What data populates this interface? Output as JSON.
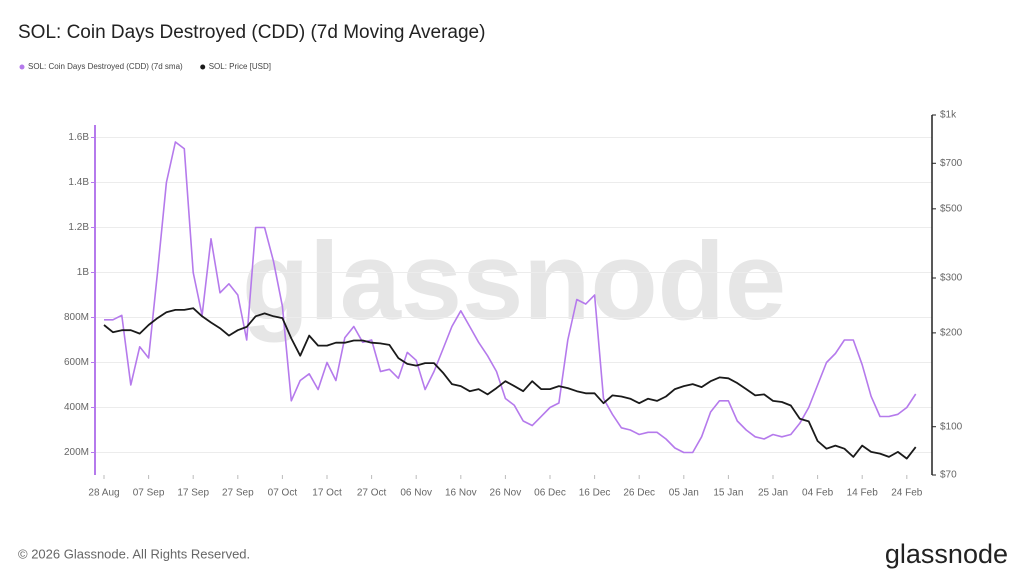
{
  "chart_data": {
    "type": "line",
    "title": "SOL: Coin Days Destroyed (CDD) (7d Moving Average)",
    "watermark": "glassnode",
    "footer": "© 2026 Glassnode. All Rights Reserved.",
    "logo": "glassnode",
    "categories": [
      "28 Aug",
      null,
      null,
      null,
      null,
      "07 Sep",
      null,
      null,
      null,
      null,
      "17 Sep",
      null,
      null,
      null,
      null,
      "27 Sep",
      null,
      null,
      null,
      null,
      "07 Oct",
      null,
      null,
      null,
      null,
      "17 Oct",
      null,
      null,
      null,
      null,
      "27 Oct",
      null,
      null,
      null,
      null,
      "06 Nov",
      null,
      null,
      null,
      null,
      "16 Nov",
      null,
      null,
      null,
      null,
      "26 Nov",
      null,
      null,
      null,
      null,
      "06 Dec",
      null,
      null,
      null,
      null,
      "16 Dec",
      null,
      null,
      null,
      null,
      "26 Dec",
      null,
      null,
      null,
      null,
      "05 Jan",
      null,
      null,
      null,
      null,
      "15 Jan",
      null,
      null,
      null,
      null,
      "25 Jan",
      null,
      null,
      null,
      null,
      "04 Feb",
      null,
      null,
      null,
      null,
      "14 Feb",
      null,
      null,
      null,
      null,
      "24 Feb",
      null
    ],
    "series": [
      {
        "name": "SOL: Coin Days Destroyed (CDD) (7d sma)",
        "color": "#b57aec",
        "axis": "y",
        "values": [
          790000000.0,
          790000000.0,
          810000000.0,
          500000000.0,
          670000000.0,
          620000000.0,
          1000000000.0,
          1400000000.0,
          1580000000.0,
          1550000000.0,
          1000000000.0,
          810000000.0,
          1150000000.0,
          910000000.0,
          950000000.0,
          900000000.0,
          700000000.0,
          1200000000.0,
          1200000000.0,
          1050000000.0,
          850000000.0,
          430000000.0,
          520000000.0,
          550000000.0,
          480000000.0,
          600000000.0,
          520000000.0,
          710000000.0,
          760000000.0,
          690000000.0,
          700000000.0,
          560000000.0,
          570000000.0,
          530000000.0,
          645000000.0,
          610000000.0,
          480000000.0,
          560000000.0,
          660000000.0,
          760000000.0,
          830000000.0,
          760000000.0,
          690000000.0,
          630000000.0,
          560000000.0,
          440000000.0,
          410000000.0,
          340000000.0,
          320000000.0,
          360000000.0,
          400000000.0,
          420000000.0,
          700000000.0,
          880000000.0,
          860000000.0,
          900000000.0,
          440000000.0,
          370000000.0,
          310000000.0,
          300000000.0,
          280000000.0,
          290000000.0,
          290000000.0,
          260000000.0,
          220000000.0,
          200000000.0,
          200000000.0,
          270000000.0,
          380000000.0,
          430000000.0,
          430000000.0,
          340000000.0,
          300000000.0,
          270000000.0,
          260000000.0,
          280000000.0,
          270000000.0,
          280000000.0,
          330000000.0,
          400000000.0,
          500000000.0,
          600000000.0,
          640000000.0,
          700000000.0,
          700000000.0,
          590000000.0,
          450000000.0,
          360000000.0,
          360000000.0,
          370000000.0,
          400000000.0,
          460000000.0
        ]
      },
      {
        "name": "SOL: Price [USD]",
        "color": "#1a1a1a",
        "axis": "y2",
        "values": [
          212,
          201,
          204,
          204,
          199,
          212,
          223,
          233,
          237,
          237,
          240,
          226,
          216,
          207,
          196,
          204,
          209,
          226,
          231,
          226,
          223,
          192,
          169,
          196,
          182,
          182,
          186,
          186,
          189,
          189,
          186,
          185,
          183,
          166,
          159,
          157,
          160,
          160,
          149,
          137,
          135,
          130,
          132,
          127,
          133,
          140,
          135,
          130,
          140,
          132,
          132,
          135,
          133,
          130,
          128,
          128,
          119,
          126,
          125,
          123,
          119,
          123,
          121,
          125,
          132,
          135,
          137,
          134,
          140,
          144,
          143,
          138,
          132,
          126,
          127,
          121,
          120,
          117,
          106,
          104,
          90,
          85,
          87,
          85,
          80,
          87,
          83,
          82,
          80,
          83,
          79,
          86
        ]
      }
    ],
    "ylim": [
      100000000.0,
      1700000000.0
    ],
    "yticks": [
      {
        "value": 200000000.0,
        "label": "200M"
      },
      {
        "value": 400000000.0,
        "label": "400M"
      },
      {
        "value": 600000000.0,
        "label": "600M"
      },
      {
        "value": 800000000.0,
        "label": "800M"
      },
      {
        "value": 1000000000.0,
        "label": "1B"
      },
      {
        "value": 1200000000.0,
        "label": "1.2B"
      },
      {
        "value": 1400000000.0,
        "label": "1.4B"
      },
      {
        "value": 1600000000.0,
        "label": "1.6B"
      }
    ],
    "y2lim": [
      70,
      1000
    ],
    "y2log": true,
    "y2ticks": [
      {
        "value": 70,
        "label": "$70"
      },
      {
        "value": 100,
        "label": "$100"
      },
      {
        "value": 200,
        "label": "$200"
      },
      {
        "value": 300,
        "label": "$300"
      },
      {
        "value": 500,
        "label": "$500"
      },
      {
        "value": 700,
        "label": "$700"
      },
      {
        "value": 1000,
        "label": "$1k"
      }
    ],
    "grid": true
  }
}
